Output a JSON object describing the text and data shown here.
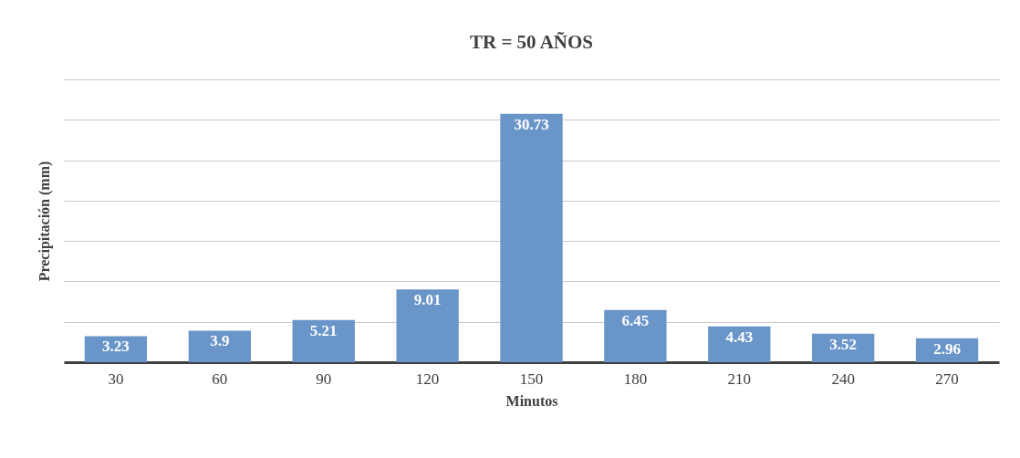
{
  "chart_data": {
    "type": "bar",
    "title": "TR = 50 AÑOS",
    "xlabel": "Minutos",
    "ylabel": "Precipitación (mm)",
    "categories": [
      "30",
      "60",
      "90",
      "120",
      "150",
      "180",
      "210",
      "240",
      "270"
    ],
    "values": [
      3.23,
      3.9,
      5.21,
      9.01,
      30.73,
      6.45,
      4.43,
      3.52,
      2.96
    ],
    "color": "#6a95c9",
    "data_labels": true,
    "ylim": [
      0,
      35
    ],
    "yticks": [
      {
        "value": 0,
        "label": null
      },
      {
        "value": 5,
        "label": null
      },
      {
        "value": 10,
        "label": null
      },
      {
        "value": 15,
        "label": null
      },
      {
        "value": 20,
        "label": null
      },
      {
        "value": 25,
        "label": null
      },
      {
        "value": 30,
        "label": null
      },
      {
        "value": 35,
        "label": null
      }
    ],
    "tick_labels": "x",
    "grid": "y"
  }
}
